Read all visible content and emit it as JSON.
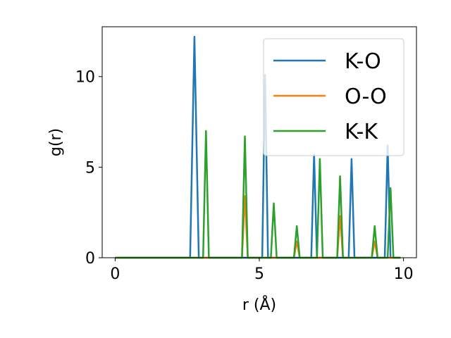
{
  "chart_data": {
    "type": "line",
    "xlabel": "r (Å)",
    "ylabel": "g(r)",
    "xlim": [
      -0.45,
      10.45
    ],
    "ylim": [
      0,
      12.75
    ],
    "xticks": [
      0,
      5,
      10
    ],
    "yticks": [
      0,
      5,
      10
    ],
    "grid": false,
    "legend_position": "top-right",
    "series": [
      {
        "name": "K-O",
        "color": "#1f77b4",
        "x": [
          0,
          2.6,
          2.75,
          2.9,
          5.1,
          5.2,
          5.3,
          6.8,
          6.9,
          7.0,
          8.1,
          8.2,
          8.3,
          9.35,
          9.45,
          9.55,
          9.9
        ],
        "y": [
          0,
          0,
          12.2,
          0,
          0,
          10.1,
          0,
          0,
          5.7,
          0,
          0,
          5.45,
          0,
          0,
          6.2,
          0,
          0
        ]
      },
      {
        "name": "O-O",
        "color": "#ff7f0e",
        "x": [
          0,
          4.4,
          4.5,
          4.6,
          6.2,
          6.3,
          6.4,
          7.7,
          7.8,
          7.9,
          8.9,
          9.0,
          9.1,
          9.9
        ],
        "y": [
          0,
          0,
          3.4,
          0,
          0,
          0.9,
          0,
          0,
          2.3,
          0,
          0,
          0.9,
          0,
          0
        ]
      },
      {
        "name": "K-K",
        "color": "#2ca02c",
        "x": [
          0,
          3.05,
          3.15,
          3.25,
          4.4,
          4.5,
          4.6,
          5.4,
          5.5,
          5.6,
          6.2,
          6.3,
          6.4,
          7.0,
          7.1,
          7.2,
          7.7,
          7.8,
          7.9,
          8.9,
          9.0,
          9.1,
          9.45,
          9.55,
          9.65,
          9.9
        ],
        "y": [
          0,
          0,
          7.0,
          0,
          0,
          6.7,
          0,
          0,
          3.0,
          0,
          0,
          1.75,
          0,
          0,
          5.45,
          0,
          0,
          4.5,
          0,
          0,
          1.75,
          0,
          0,
          3.85,
          0,
          0
        ]
      }
    ]
  }
}
